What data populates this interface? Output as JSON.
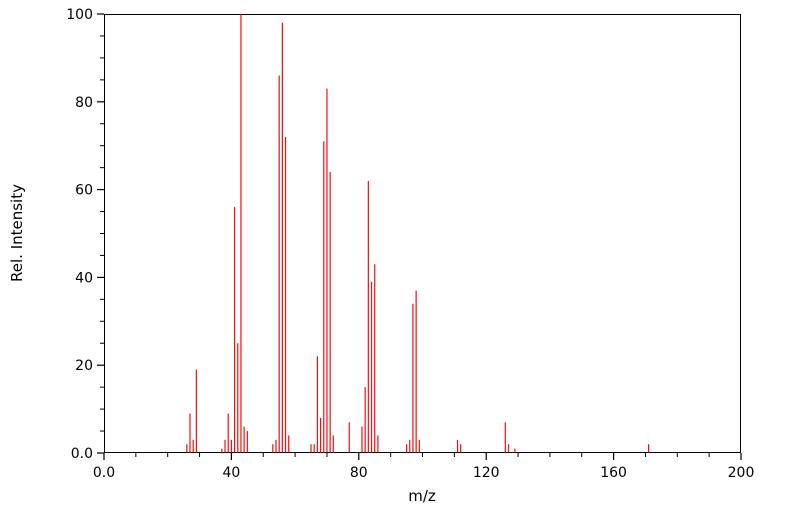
{
  "figure": {
    "xlabel": "m/z",
    "ylabel": "Rel. Intensity"
  },
  "chart_data": {
    "type": "bar",
    "style": "stick-mass-spectrum",
    "title": "",
    "xlabel": "m/z",
    "ylabel": "Rel. Intensity",
    "xlim": [
      0,
      200
    ],
    "ylim": [
      0,
      100
    ],
    "x_ticks": [
      0,
      40,
      80,
      120,
      160,
      200
    ],
    "x_tick_labels": [
      "0.0",
      "40",
      "80",
      "120",
      "160",
      "200"
    ],
    "x_minor_step": 10,
    "y_ticks": [
      0,
      20,
      40,
      60,
      80,
      100
    ],
    "y_tick_labels": [
      "0.0",
      "20",
      "40",
      "60",
      "80",
      "100"
    ],
    "y_minor_step": 5,
    "grid": false,
    "legend": false,
    "bar_color": "#ee1111",
    "axis_color": "#000000",
    "peaks": [
      {
        "mz": 26,
        "intensity": 2
      },
      {
        "mz": 27,
        "intensity": 9
      },
      {
        "mz": 28,
        "intensity": 3
      },
      {
        "mz": 29,
        "intensity": 19
      },
      {
        "mz": 37,
        "intensity": 1
      },
      {
        "mz": 38,
        "intensity": 3
      },
      {
        "mz": 39,
        "intensity": 9
      },
      {
        "mz": 40,
        "intensity": 3
      },
      {
        "mz": 41,
        "intensity": 56
      },
      {
        "mz": 42,
        "intensity": 25
      },
      {
        "mz": 43,
        "intensity": 100
      },
      {
        "mz": 44,
        "intensity": 6
      },
      {
        "mz": 45,
        "intensity": 5
      },
      {
        "mz": 53,
        "intensity": 2
      },
      {
        "mz": 54,
        "intensity": 3
      },
      {
        "mz": 55,
        "intensity": 86
      },
      {
        "mz": 56,
        "intensity": 98
      },
      {
        "mz": 57,
        "intensity": 72
      },
      {
        "mz": 58,
        "intensity": 4
      },
      {
        "mz": 65,
        "intensity": 2
      },
      {
        "mz": 66,
        "intensity": 2
      },
      {
        "mz": 67,
        "intensity": 22
      },
      {
        "mz": 68,
        "intensity": 8
      },
      {
        "mz": 69,
        "intensity": 71
      },
      {
        "mz": 70,
        "intensity": 83
      },
      {
        "mz": 71,
        "intensity": 64
      },
      {
        "mz": 72,
        "intensity": 4
      },
      {
        "mz": 77,
        "intensity": 7
      },
      {
        "mz": 81,
        "intensity": 6
      },
      {
        "mz": 82,
        "intensity": 15
      },
      {
        "mz": 83,
        "intensity": 62
      },
      {
        "mz": 84,
        "intensity": 39
      },
      {
        "mz": 85,
        "intensity": 43
      },
      {
        "mz": 86,
        "intensity": 4
      },
      {
        "mz": 95,
        "intensity": 2
      },
      {
        "mz": 96,
        "intensity": 3
      },
      {
        "mz": 97,
        "intensity": 34
      },
      {
        "mz": 98,
        "intensity": 37
      },
      {
        "mz": 99,
        "intensity": 3
      },
      {
        "mz": 111,
        "intensity": 3
      },
      {
        "mz": 112,
        "intensity": 2
      },
      {
        "mz": 126,
        "intensity": 7
      },
      {
        "mz": 127,
        "intensity": 2
      },
      {
        "mz": 129,
        "intensity": 1
      },
      {
        "mz": 171,
        "intensity": 2
      }
    ]
  }
}
